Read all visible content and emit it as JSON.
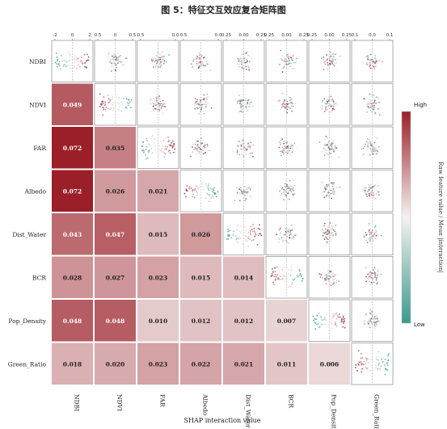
{
  "title": "图 5：特征交互效应复合矩阵图",
  "chart_data": {
    "type": "heatmap",
    "title": "图 5：特征交互效应复合矩阵图",
    "xlabel": "SHAP interaction value",
    "features": [
      "NDBI",
      "NDVI",
      "FAR",
      "Albedo",
      "Dist_Water",
      "BCR",
      "Pop_Density",
      "Green_Ratio"
    ],
    "lower_triangle_mean_interaction": [
      {
        "row": "NDVI",
        "values": [
          0.049
        ]
      },
      {
        "row": "FAR",
        "values": [
          0.072,
          0.035
        ]
      },
      {
        "row": "Albedo",
        "values": [
          0.072,
          0.026,
          0.021
        ]
      },
      {
        "row": "Dist_Water",
        "values": [
          0.043,
          0.047,
          0.015,
          0.026
        ]
      },
      {
        "row": "BCR",
        "values": [
          0.028,
          0.027,
          0.023,
          0.015,
          0.014
        ]
      },
      {
        "row": "Pop_Density",
        "values": [
          0.048,
          0.048,
          0.01,
          0.012,
          0.012,
          0.007
        ]
      },
      {
        "row": "Green_Ratio",
        "values": [
          0.018,
          0.02,
          0.023,
          0.022,
          0.021,
          0.011,
          0.006
        ]
      }
    ],
    "top_tick_labels": [
      [
        "-2",
        "0",
        "2"
      ],
      [
        "0.5",
        "0",
        "0.5"
      ],
      [
        "0.5",
        "0.0"
      ],
      [
        "0.5",
        "0.0"
      ],
      [
        "0.25",
        "0.00",
        "0.25"
      ],
      [
        "0.25",
        "0.00",
        "0.25"
      ],
      [
        "0.25",
        "0.00",
        "0.25"
      ],
      [
        "0.1",
        "0.0",
        "0.1"
      ]
    ],
    "upper_triangle": "SHAP interaction value scatter plots colored by feature value",
    "diagonal": "SHAP main effect scatter plots colored by feature value",
    "colorbar": {
      "label": "Raw feature value / Mean |interaction|",
      "high_label": "High",
      "low_label": "Low",
      "high_color": "#9b1f28",
      "mid_color": "#f6f1f1",
      "low_color": "#3a9a8e"
    }
  }
}
